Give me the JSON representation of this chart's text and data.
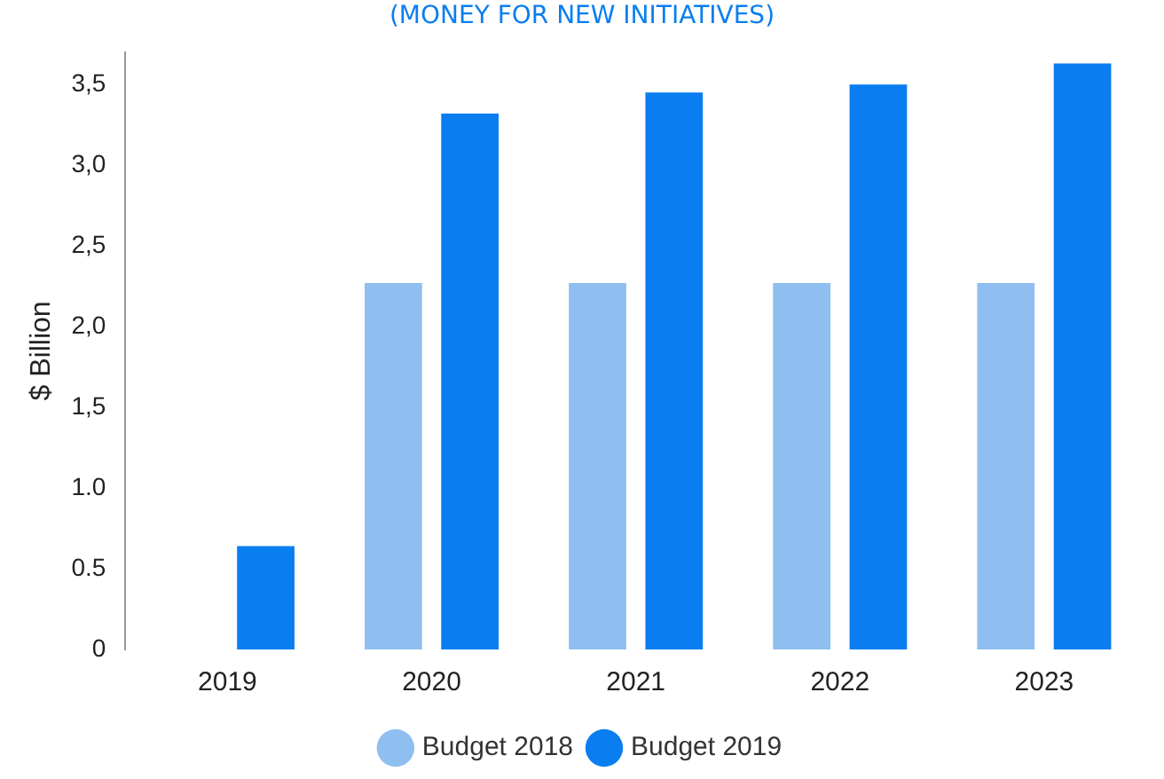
{
  "chart_data": {
    "type": "bar",
    "title": "(MONEY FOR NEW INITIATIVES)",
    "ylabel": "$ Billion",
    "categories": [
      "2019",
      "2020",
      "2021",
      "2022",
      "2023"
    ],
    "series": [
      {
        "name": "Budget 2018",
        "color": "#8ebff0",
        "values": [
          null,
          2.27,
          2.27,
          2.27,
          2.27
        ]
      },
      {
        "name": "Budget 2019",
        "color": "#0a7ef0",
        "values": [
          0.64,
          3.32,
          3.45,
          3.5,
          3.63
        ]
      }
    ],
    "ylim": [
      0,
      3.7
    ],
    "yticks": [
      0,
      {
        "value": 0.5,
        "label": "0.5"
      },
      {
        "value": 1,
        "label": "1.0"
      },
      {
        "value": 1.5,
        "label": "1,5"
      },
      {
        "value": 2,
        "label": "2,0"
      },
      {
        "value": 2.5,
        "label": "2,5"
      },
      {
        "value": 3,
        "label": "3,0"
      },
      {
        "value": 3.5,
        "label": "3,5"
      }
    ],
    "grid": false,
    "legend": "bottom"
  }
}
